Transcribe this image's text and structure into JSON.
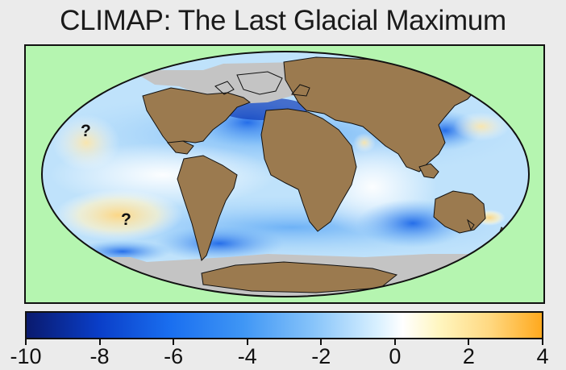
{
  "title": "CLIMAP: The Last Glacial Maximum",
  "annotations": [
    "?",
    "?"
  ],
  "colorbar": {
    "min": -10,
    "max": 4,
    "ticks": [
      "-10",
      "-8",
      "-6",
      "-4",
      "-2",
      "0",
      "2",
      "4"
    ],
    "colors": [
      "#0a1a6e",
      "#0a3ec8",
      "#3f96f5",
      "#ffffff",
      "#ffd880",
      "#ffa91e"
    ]
  },
  "legend_colors": {
    "land": "#9b7a4f",
    "ice": "#c4c4c4",
    "outside_globe": "#b5f5b0"
  }
}
